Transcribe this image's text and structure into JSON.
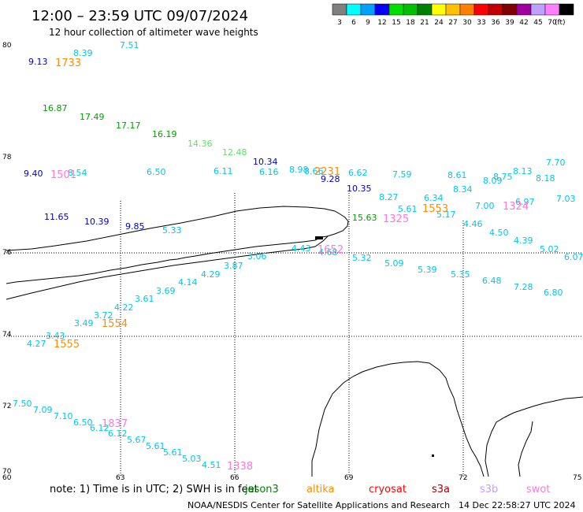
{
  "header": {
    "title": "12:00 – 23:59 UTC 09/07/2024",
    "subtitle": "12 hour collection of altimeter wave heights"
  },
  "legend": {
    "unit": "(ft)",
    "bins": [
      {
        "label": "3",
        "color": "#808080"
      },
      {
        "label": "6",
        "color": "#00ffff"
      },
      {
        "label": "9",
        "color": "#00a0ff"
      },
      {
        "label": "12",
        "color": "#0000ff"
      },
      {
        "label": "15",
        "color": "#00e000"
      },
      {
        "label": "18",
        "color": "#00c000"
      },
      {
        "label": "21",
        "color": "#008000"
      },
      {
        "label": "24",
        "color": "#ffff00"
      },
      {
        "label": "27",
        "color": "#ffc000"
      },
      {
        "label": "30",
        "color": "#ff8000"
      },
      {
        "label": "33",
        "color": "#ff0000"
      },
      {
        "label": "36",
        "color": "#c00000"
      },
      {
        "label": "39",
        "color": "#800000"
      },
      {
        "label": "42",
        "color": "#a000a0"
      },
      {
        "label": "45",
        "color": "#c0a0ff"
      },
      {
        "label": "70",
        "color": "#ff80ff"
      },
      {
        "label": "",
        "color": "#000000"
      }
    ]
  },
  "map": {
    "lat_labels": [
      "80",
      "78",
      "76",
      "74",
      "72",
      "70"
    ],
    "lon_labels": [
      "60",
      "63",
      "66",
      "69",
      "72",
      "75"
    ]
  },
  "observations": {
    "colors": {
      "cyan": "#00c8e8",
      "blue": "#0000c8",
      "green": "#00a000",
      "lightgreen": "#60e060",
      "orange": "#ff8c00",
      "pink": "#ff78d8"
    },
    "heights": [
      {
        "v": "9.13",
        "c": "blue"
      },
      {
        "v": "8.39",
        "c": "cyan"
      },
      {
        "v": "7.51",
        "c": "cyan"
      },
      {
        "v": "16.87",
        "c": "green"
      },
      {
        "v": "17.49",
        "c": "green"
      },
      {
        "v": "17.17",
        "c": "green"
      },
      {
        "v": "16.19",
        "c": "green"
      },
      {
        "v": "14.36",
        "c": "lightgreen"
      },
      {
        "v": "12.48",
        "c": "lightgreen"
      },
      {
        "v": "10.34",
        "c": "blue"
      },
      {
        "v": "9.40",
        "c": "blue"
      },
      {
        "v": "8.54",
        "c": "cyan"
      },
      {
        "v": "6.50",
        "c": "cyan"
      },
      {
        "v": "6.11",
        "c": "cyan"
      },
      {
        "v": "6.16",
        "c": "cyan"
      },
      {
        "v": "8.98",
        "c": "cyan"
      },
      {
        "v": "8.66",
        "c": "cyan"
      },
      {
        "v": "9.28",
        "c": "blue"
      },
      {
        "v": "6.62",
        "c": "cyan"
      },
      {
        "v": "10.35",
        "c": "blue"
      },
      {
        "v": "7.59",
        "c": "cyan"
      },
      {
        "v": "8.61",
        "c": "cyan"
      },
      {
        "v": "8.09",
        "c": "cyan"
      },
      {
        "v": "8.75",
        "c": "cyan"
      },
      {
        "v": "8.13",
        "c": "cyan"
      },
      {
        "v": "7.70",
        "c": "cyan"
      },
      {
        "v": "8.18",
        "c": "cyan"
      },
      {
        "v": "8.34",
        "c": "cyan"
      },
      {
        "v": "8.27",
        "c": "cyan"
      },
      {
        "v": "6.34",
        "c": "cyan"
      },
      {
        "v": "7.03",
        "c": "cyan"
      },
      {
        "v": "7.00",
        "c": "cyan"
      },
      {
        "v": "6.97",
        "c": "cyan"
      },
      {
        "v": "5.61",
        "c": "cyan"
      },
      {
        "v": "5.17",
        "c": "cyan"
      },
      {
        "v": "4.46",
        "c": "cyan"
      },
      {
        "v": "4.50",
        "c": "cyan"
      },
      {
        "v": "4.39",
        "c": "cyan"
      },
      {
        "v": "5.02",
        "c": "cyan"
      },
      {
        "v": "6.07",
        "c": "cyan"
      },
      {
        "v": "11.65",
        "c": "blue"
      },
      {
        "v": "10.39",
        "c": "blue"
      },
      {
        "v": "9.85",
        "c": "blue"
      },
      {
        "v": "5.33",
        "c": "cyan"
      },
      {
        "v": "15.63",
        "c": "green"
      },
      {
        "v": "4.43",
        "c": "cyan"
      },
      {
        "v": "4.68",
        "c": "cyan"
      },
      {
        "v": "5.32",
        "c": "cyan"
      },
      {
        "v": "5.09",
        "c": "cyan"
      },
      {
        "v": "5.39",
        "c": "cyan"
      },
      {
        "v": "5.35",
        "c": "cyan"
      },
      {
        "v": "6.48",
        "c": "cyan"
      },
      {
        "v": "7.28",
        "c": "cyan"
      },
      {
        "v": "6.80",
        "c": "cyan"
      },
      {
        "v": "3.06",
        "c": "cyan"
      },
      {
        "v": "3.87",
        "c": "cyan"
      },
      {
        "v": "4.29",
        "c": "cyan"
      },
      {
        "v": "4.14",
        "c": "cyan"
      },
      {
        "v": "3.69",
        "c": "cyan"
      },
      {
        "v": "3.61",
        "c": "cyan"
      },
      {
        "v": "4.22",
        "c": "cyan"
      },
      {
        "v": "3.72",
        "c": "cyan"
      },
      {
        "v": "3.49",
        "c": "cyan"
      },
      {
        "v": "3.43",
        "c": "cyan"
      },
      {
        "v": "4.27",
        "c": "cyan"
      },
      {
        "v": "7.50",
        "c": "cyan"
      },
      {
        "v": "7.09",
        "c": "cyan"
      },
      {
        "v": "7.10",
        "c": "cyan"
      },
      {
        "v": "6.50",
        "c": "cyan"
      },
      {
        "v": "6.12",
        "c": "cyan"
      },
      {
        "v": "6.12",
        "c": "cyan"
      },
      {
        "v": "5.67",
        "c": "cyan"
      },
      {
        "v": "5.61",
        "c": "cyan"
      },
      {
        "v": "5.61",
        "c": "cyan"
      },
      {
        "v": "5.03",
        "c": "cyan"
      },
      {
        "v": "4.51",
        "c": "cyan"
      }
    ],
    "times": [
      {
        "v": "1733",
        "c": "orange"
      },
      {
        "v": "1501",
        "c": "pink"
      },
      {
        "v": "2231",
        "c": "orange"
      },
      {
        "v": "1553",
        "c": "orange"
      },
      {
        "v": "1324",
        "c": "pink"
      },
      {
        "v": "1325",
        "c": "pink"
      },
      {
        "v": "1652",
        "c": "pink"
      },
      {
        "v": "1554",
        "c": "orange"
      },
      {
        "v": "1555",
        "c": "orange"
      },
      {
        "v": "1837",
        "c": "pink"
      },
      {
        "v": "1338",
        "c": "pink"
      }
    ]
  },
  "footer": {
    "note": "note:  1) Time is in UTC;  2) SWH is in feet",
    "missions": [
      {
        "label": "jason3",
        "color": "#008000"
      },
      {
        "label": "altika",
        "color": "#ff8c00"
      },
      {
        "label": "cryosat",
        "color": "#ff0000"
      },
      {
        "label": "s3a",
        "color": "#a00000"
      },
      {
        "label": "s3b",
        "color": "#c0a0ff"
      },
      {
        "label": "swot",
        "color": "#ff78d8"
      }
    ],
    "credit": "NOAA/NESDIS Center for Satellite Applications and Research",
    "timestamp": "14 Dec 22:58:27 UTC 2024"
  }
}
